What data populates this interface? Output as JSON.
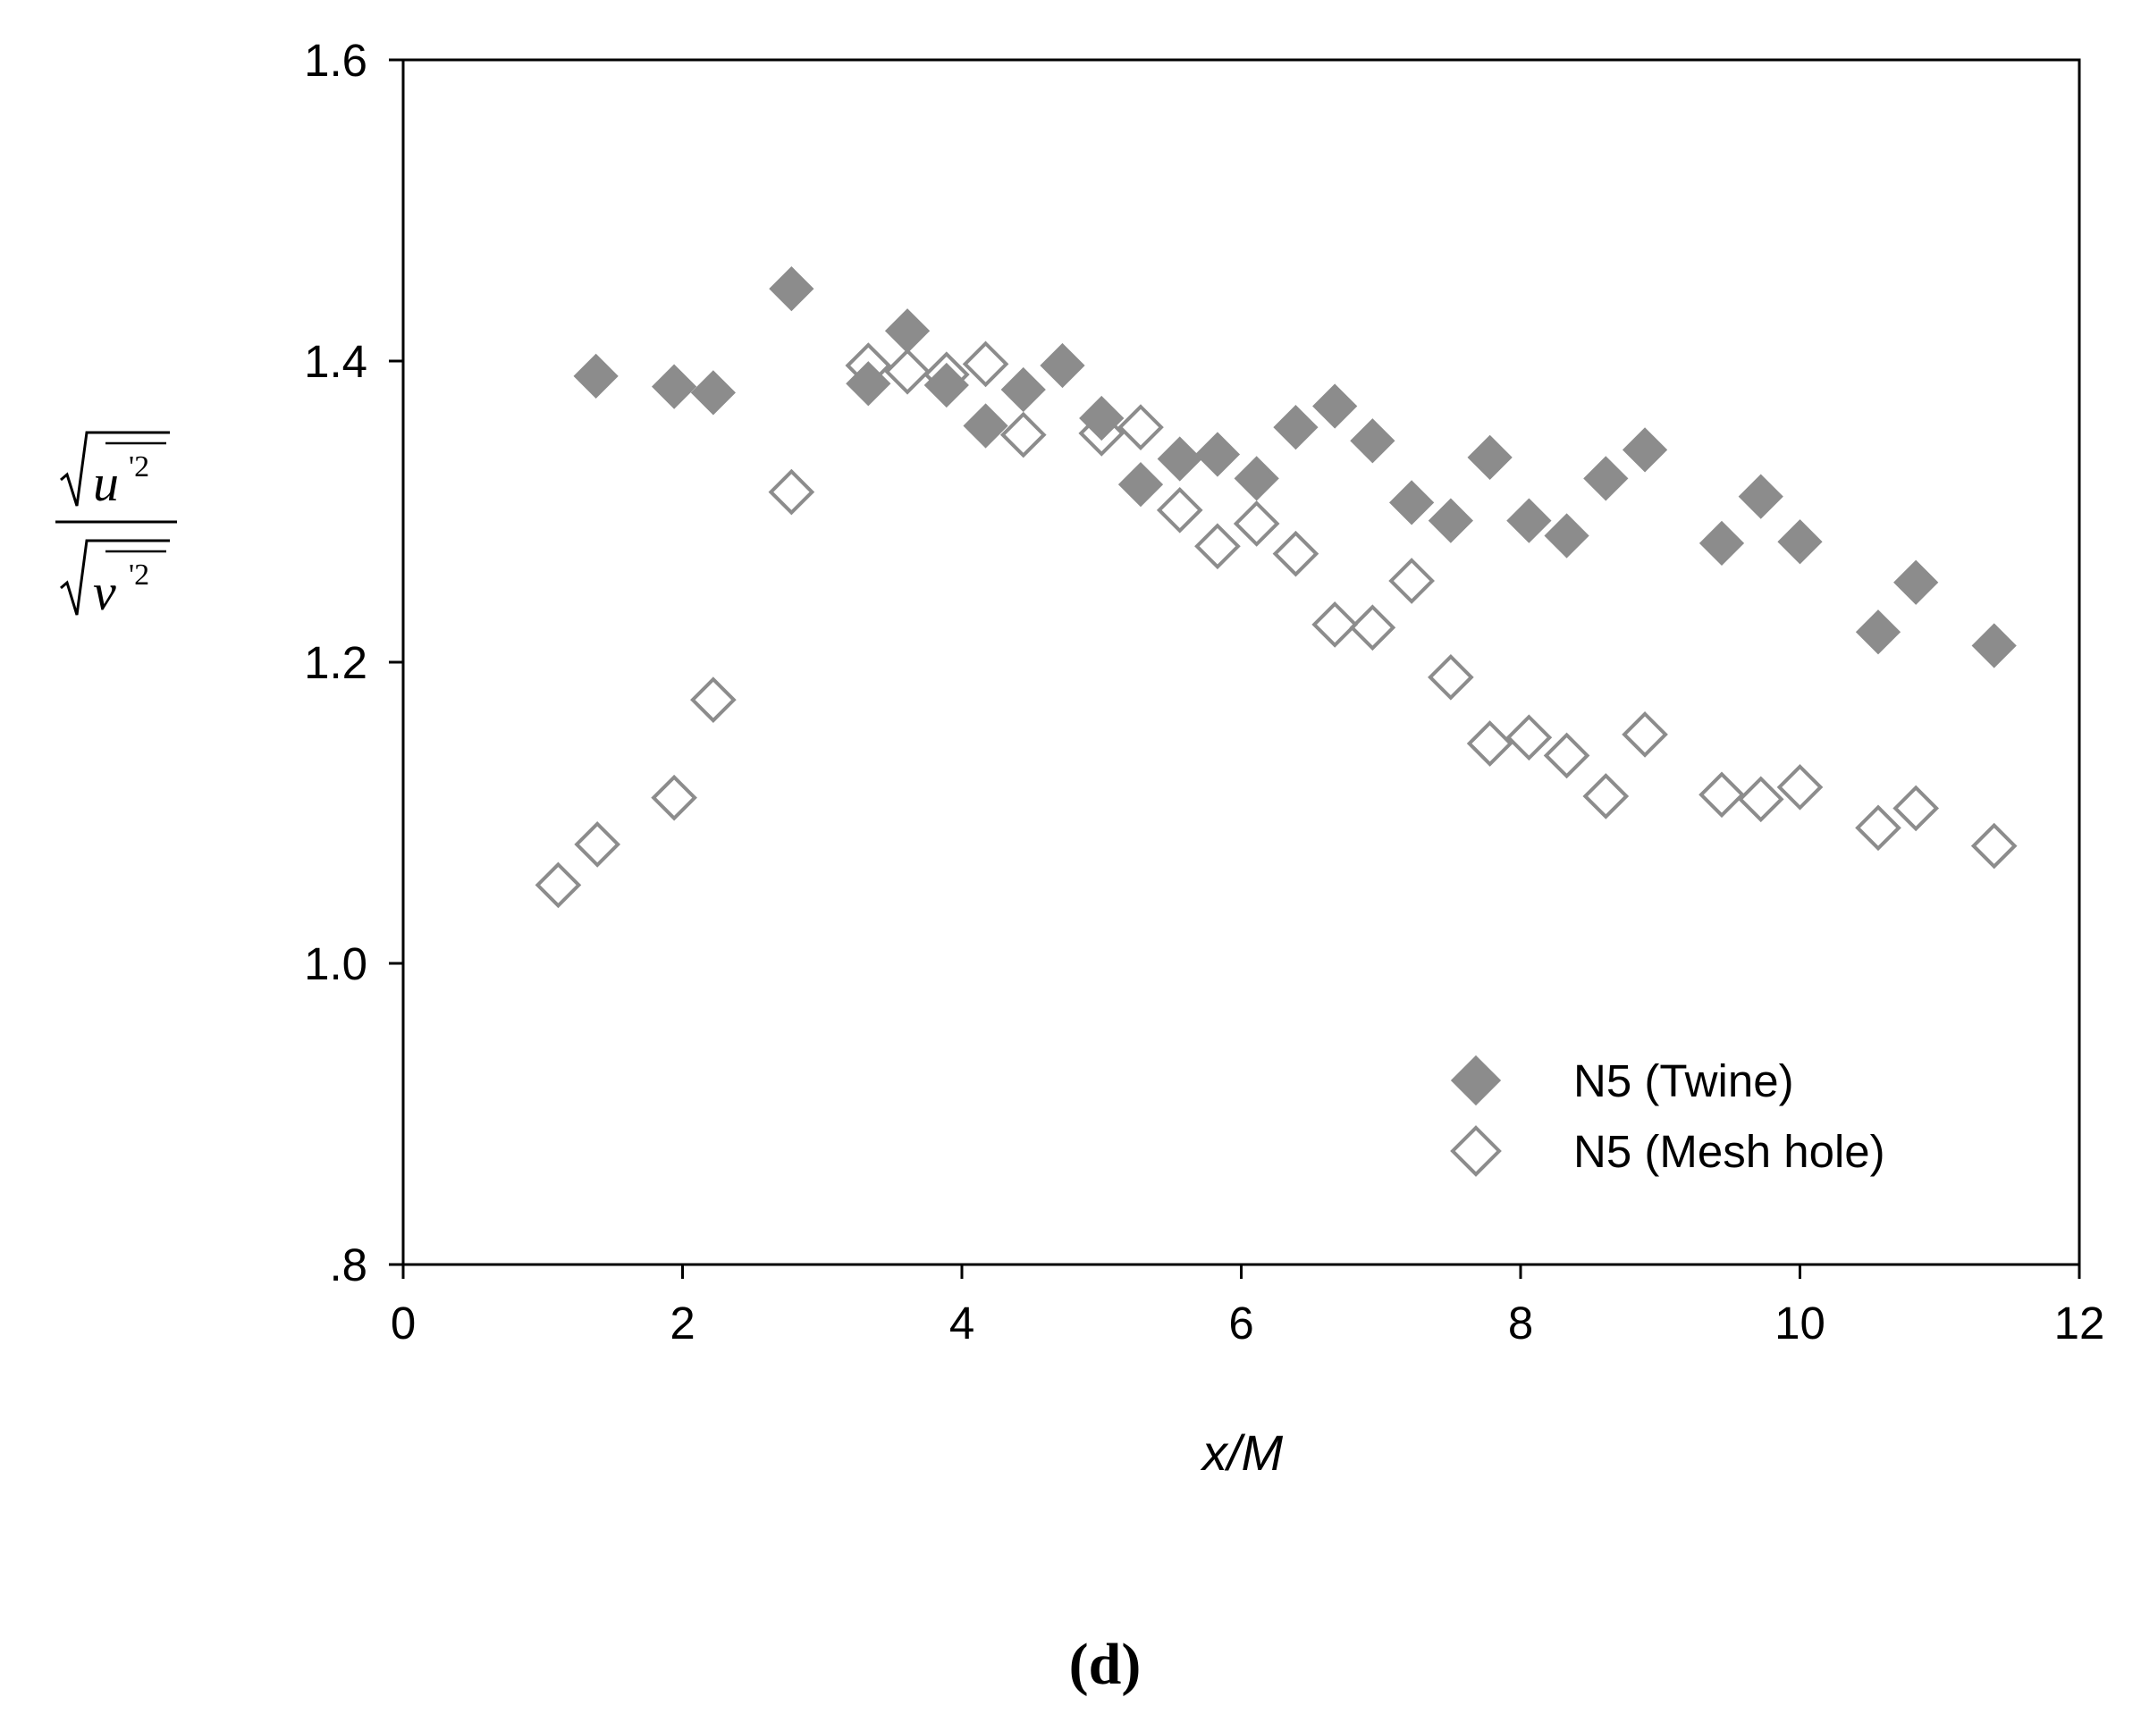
{
  "chart_data": {
    "type": "scatter",
    "xlabel": "x/M",
    "ylabel": {
      "numerator_symbol": "u",
      "denominator_symbol": "v",
      "prime_superscript": "'2"
    },
    "xlim": [
      0,
      12
    ],
    "ylim": [
      0.8,
      1.6
    ],
    "x_ticks": [
      "0",
      "2",
      "4",
      "6",
      "8",
      "10",
      "12"
    ],
    "y_ticks": [
      ".8",
      "1.0",
      "1.2",
      "1.4",
      "1.6"
    ],
    "grid": false,
    "legend_position": "bottom-right",
    "series": [
      {
        "name": "N5 (Twine)",
        "marker": "filled-diamond",
        "color": "#8c8c8c",
        "points": [
          [
            1.38,
            1.39
          ],
          [
            1.94,
            1.383
          ],
          [
            2.22,
            1.379
          ],
          [
            2.78,
            1.448
          ],
          [
            3.33,
            1.385
          ],
          [
            3.61,
            1.42
          ],
          [
            3.89,
            1.384
          ],
          [
            4.17,
            1.357
          ],
          [
            4.44,
            1.381
          ],
          [
            4.72,
            1.397
          ],
          [
            5.0,
            1.362
          ],
          [
            5.28,
            1.318
          ],
          [
            5.56,
            1.335
          ],
          [
            5.83,
            1.338
          ],
          [
            6.11,
            1.322
          ],
          [
            6.39,
            1.356
          ],
          [
            6.67,
            1.37
          ],
          [
            6.94,
            1.347
          ],
          [
            7.22,
            1.306
          ],
          [
            7.5,
            1.294
          ],
          [
            7.78,
            1.336
          ],
          [
            8.06,
            1.294
          ],
          [
            8.33,
            1.284
          ],
          [
            8.61,
            1.322
          ],
          [
            8.89,
            1.341
          ],
          [
            9.44,
            1.279
          ],
          [
            9.72,
            1.31
          ],
          [
            10.0,
            1.28
          ],
          [
            10.56,
            1.22
          ],
          [
            10.83,
            1.253
          ],
          [
            11.39,
            1.211
          ]
        ]
      },
      {
        "name": "N5 (Mesh hole)",
        "marker": "open-diamond",
        "color": "#8c8c8c",
        "points": [
          [
            1.11,
            1.052
          ],
          [
            1.39,
            1.079
          ],
          [
            1.94,
            1.11
          ],
          [
            2.22,
            1.175
          ],
          [
            2.78,
            1.313
          ],
          [
            3.33,
            1.397
          ],
          [
            3.61,
            1.393
          ],
          [
            3.89,
            1.391
          ],
          [
            4.17,
            1.398
          ],
          [
            4.44,
            1.351
          ],
          [
            5.0,
            1.352
          ],
          [
            5.28,
            1.356
          ],
          [
            5.56,
            1.301
          ],
          [
            5.83,
            1.277
          ],
          [
            6.11,
            1.292
          ],
          [
            6.39,
            1.272
          ],
          [
            6.67,
            1.225
          ],
          [
            6.94,
            1.223
          ],
          [
            7.22,
            1.254
          ],
          [
            7.5,
            1.19
          ],
          [
            7.78,
            1.146
          ],
          [
            8.06,
            1.15
          ],
          [
            8.33,
            1.138
          ],
          [
            8.61,
            1.111
          ],
          [
            8.89,
            1.152
          ],
          [
            9.44,
            1.112
          ],
          [
            9.72,
            1.109
          ],
          [
            10.0,
            1.117
          ],
          [
            10.56,
            1.09
          ],
          [
            10.83,
            1.103
          ],
          [
            11.39,
            1.078
          ]
        ]
      }
    ]
  },
  "panel_label": "(d)"
}
